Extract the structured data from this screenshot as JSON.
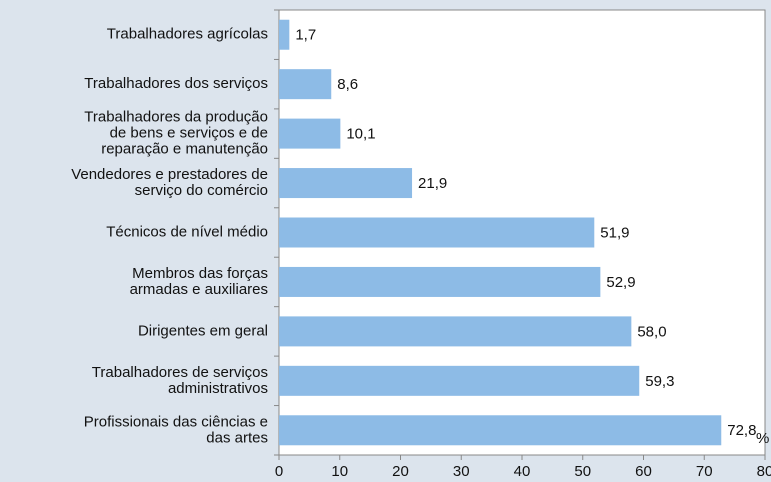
{
  "chart_data": {
    "type": "bar",
    "orientation": "horizontal",
    "categories": [
      "Trabalhadores agrícolas",
      "Trabalhadores dos serviços",
      "Trabalhadores da produção\nde bens e serviços e de\nreparação e manutenção",
      "Vendedores e prestadores de\nserviço do comércio",
      "Técnicos de nível médio",
      "Membros das forças\narmadas e auxiliares",
      "Dirigentes em geral",
      "Trabalhadores de serviços\nadministrativos",
      "Profissionais das ciências e\ndas artes"
    ],
    "values": [
      1.7,
      8.6,
      10.1,
      21.9,
      51.9,
      52.9,
      58.0,
      59.3,
      72.8
    ],
    "value_labels": [
      "1,7",
      "8,6",
      "10,1",
      "21,9",
      "51,9",
      "52,9",
      "58,0",
      "59,3",
      "72,8"
    ],
    "color": "#8dbbe6",
    "xlabel": "%",
    "xlim": [
      0,
      80
    ],
    "xticks": [
      0,
      10,
      20,
      30,
      40,
      50,
      60,
      70,
      80
    ]
  }
}
